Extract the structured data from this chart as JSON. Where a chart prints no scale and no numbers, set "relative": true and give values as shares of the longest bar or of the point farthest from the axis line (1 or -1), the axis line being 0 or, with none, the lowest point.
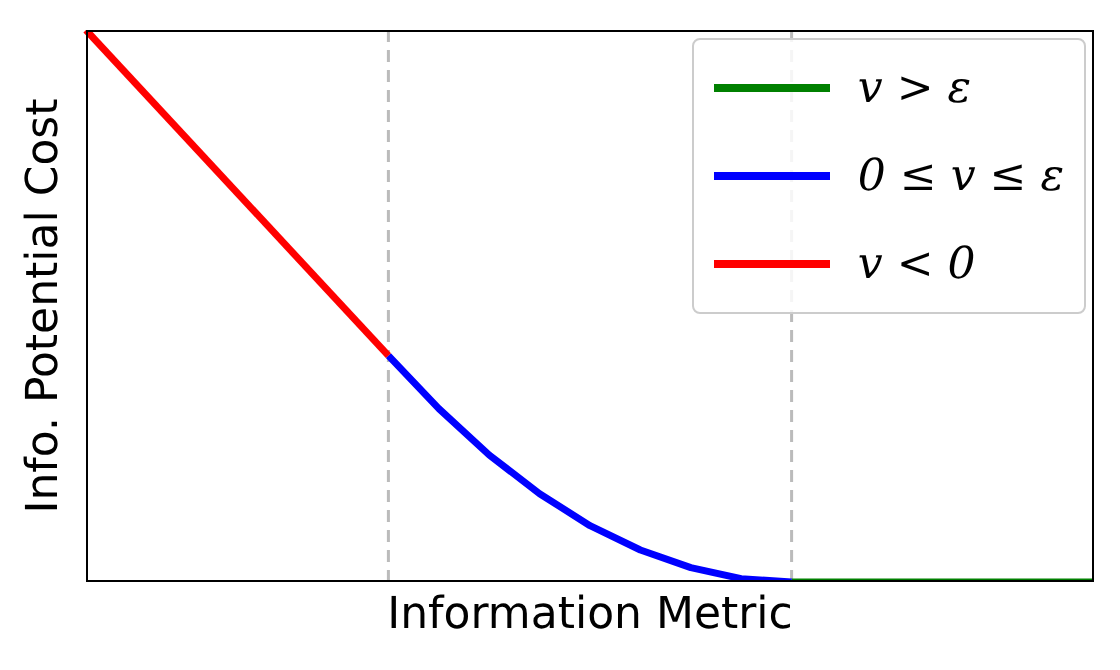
{
  "chart_data": {
    "type": "line",
    "relative": true,
    "xlabel": "Information Metric",
    "ylabel": "Info. Potential Cost",
    "categories": [
      null,
      null,
      null,
      null,
      null,
      null,
      null,
      null,
      null,
      null,
      null,
      null,
      null,
      null,
      null,
      null,
      null,
      null,
      null,
      null,
      null
    ],
    "legend": "top right",
    "marker": "none",
    "line_style": "solid",
    "series": [
      {
        "name": "v > ε",
        "color": "#008000",
        "values": [
          null,
          null,
          null,
          null,
          null,
          null,
          null,
          null,
          null,
          null,
          null,
          null,
          null,
          null,
          0,
          0,
          0,
          0,
          0,
          0,
          0
        ]
      },
      {
        "name": "0 ≤ v ≤ ε",
        "color": "#0000ff",
        "values": [
          null,
          null,
          null,
          null,
          null,
          null,
          0.41,
          0.314,
          0.23,
          0.16,
          0.102,
          0.058,
          0.026,
          0.006,
          0,
          null,
          null,
          null,
          null,
          null,
          null
        ]
      },
      {
        "name": "v < 0",
        "color": "#ff0000",
        "values": [
          1,
          null,
          null,
          null,
          null,
          null,
          0.41,
          null,
          null,
          null,
          null,
          null,
          null,
          null,
          null,
          null,
          null,
          null,
          null,
          null,
          null
        ]
      }
    ]
  }
}
